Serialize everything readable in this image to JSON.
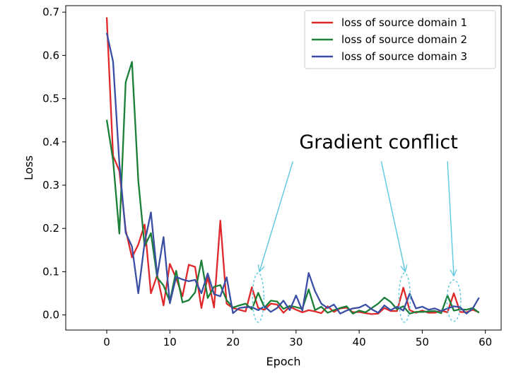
{
  "chart_data": {
    "type": "line",
    "title": "",
    "xlabel": "Epoch",
    "ylabel": "Loss",
    "xlim": [
      -6.5,
      62.5
    ],
    "ylim": [
      -0.035,
      0.715
    ],
    "xticks": [
      0,
      10,
      20,
      30,
      40,
      50,
      60
    ],
    "yticks": [
      0.0,
      0.1,
      0.2,
      0.3,
      0.4,
      0.5,
      0.6,
      0.7
    ],
    "xtick_labels": [
      "0",
      "10",
      "20",
      "30",
      "40",
      "50",
      "60"
    ],
    "ytick_labels": [
      "0.0",
      "0.1",
      "0.2",
      "0.3",
      "0.4",
      "0.5",
      "0.6",
      "0.7"
    ],
    "grid": false,
    "legend_position": "top-right",
    "x": [
      0,
      1,
      2,
      3,
      4,
      5,
      6,
      7,
      8,
      9,
      10,
      11,
      12,
      13,
      14,
      15,
      16,
      17,
      18,
      19,
      20,
      21,
      22,
      23,
      24,
      25,
      26,
      27,
      28,
      29,
      30,
      31,
      32,
      33,
      34,
      35,
      36,
      37,
      38,
      39,
      40,
      41,
      42,
      43,
      44,
      45,
      46,
      47,
      48,
      49,
      50,
      51,
      52,
      53,
      54,
      55,
      56,
      57,
      58,
      59
    ],
    "series": [
      {
        "name": "loss of source domain 1",
        "color": "#e0272a",
        "values": [
          0.688,
          0.368,
          0.333,
          0.196,
          0.133,
          0.163,
          0.209,
          0.05,
          0.092,
          0.022,
          0.118,
          0.085,
          0.043,
          0.116,
          0.111,
          0.016,
          0.088,
          0.017,
          0.218,
          0.026,
          0.016,
          0.012,
          0.008,
          0.064,
          0.016,
          0.012,
          0.026,
          0.024,
          0.005,
          0.019,
          0.012,
          0.006,
          0.011,
          0.008,
          0.004,
          0.02,
          0.007,
          0.015,
          0.017,
          0.006,
          0.007,
          0.004,
          0.002,
          0.003,
          0.016,
          0.009,
          0.009,
          0.063,
          0.011,
          0.005,
          0.01,
          0.005,
          0.005,
          0.01,
          0.006,
          0.05,
          0.007,
          0.006,
          0.012,
          0.006
        ]
      },
      {
        "name": "loss of source domain 2",
        "color": "#1a7f37",
        "values": [
          0.451,
          0.358,
          0.188,
          0.538,
          0.585,
          0.31,
          0.159,
          0.189,
          0.086,
          0.068,
          0.031,
          0.102,
          0.029,
          0.034,
          0.052,
          0.126,
          0.039,
          0.065,
          0.069,
          0.034,
          0.017,
          0.022,
          0.026,
          0.013,
          0.051,
          0.017,
          0.033,
          0.031,
          0.014,
          0.021,
          0.018,
          0.014,
          0.059,
          0.011,
          0.019,
          0.005,
          0.011,
          0.016,
          0.02,
          0.003,
          0.01,
          0.006,
          0.016,
          0.026,
          0.04,
          0.03,
          0.013,
          0.02,
          0.003,
          0.007,
          0.007,
          0.008,
          0.009,
          0.004,
          0.045,
          0.01,
          0.013,
          0.012,
          0.016,
          0.005
        ]
      },
      {
        "name": "loss of source domain 3",
        "color": "#3a4fa3",
        "values": [
          0.652,
          0.586,
          0.35,
          0.19,
          0.158,
          0.05,
          0.167,
          0.237,
          0.091,
          0.18,
          0.027,
          0.088,
          0.082,
          0.078,
          0.081,
          0.05,
          0.096,
          0.048,
          0.043,
          0.087,
          0.004,
          0.016,
          0.018,
          0.018,
          0.011,
          0.02,
          0.007,
          0.016,
          0.033,
          0.011,
          0.045,
          0.01,
          0.097,
          0.055,
          0.026,
          0.016,
          0.024,
          0.003,
          0.01,
          0.015,
          0.017,
          0.024,
          0.013,
          0.005,
          0.022,
          0.011,
          0.019,
          0.01,
          0.049,
          0.015,
          0.019,
          0.012,
          0.015,
          0.009,
          0.015,
          0.02,
          0.018,
          0.003,
          0.015,
          0.04
        ]
      }
    ],
    "annotations": [
      {
        "text": "Gradient conflict",
        "color": "#000000",
        "arrow_color": "#5bc8e0",
        "text_anchor": [
          30.5,
          0.385
        ],
        "arrows_from": [
          [
            29.5,
            0.355
          ],
          [
            43.5,
            0.355
          ],
          [
            54.0,
            0.355
          ]
        ],
        "arrows_to": [
          [
            24.2,
            0.1
          ],
          [
            47.3,
            0.1
          ],
          [
            55.0,
            0.09
          ]
        ],
        "ellipses": [
          {
            "cx": 24.0,
            "cy": 0.04,
            "rx": 0.9,
            "ry": 0.057
          },
          {
            "cx": 47.2,
            "cy": 0.04,
            "rx": 0.9,
            "ry": 0.057
          },
          {
            "cx": 55.0,
            "cy": 0.033,
            "rx": 1.1,
            "ry": 0.048
          }
        ]
      }
    ]
  }
}
